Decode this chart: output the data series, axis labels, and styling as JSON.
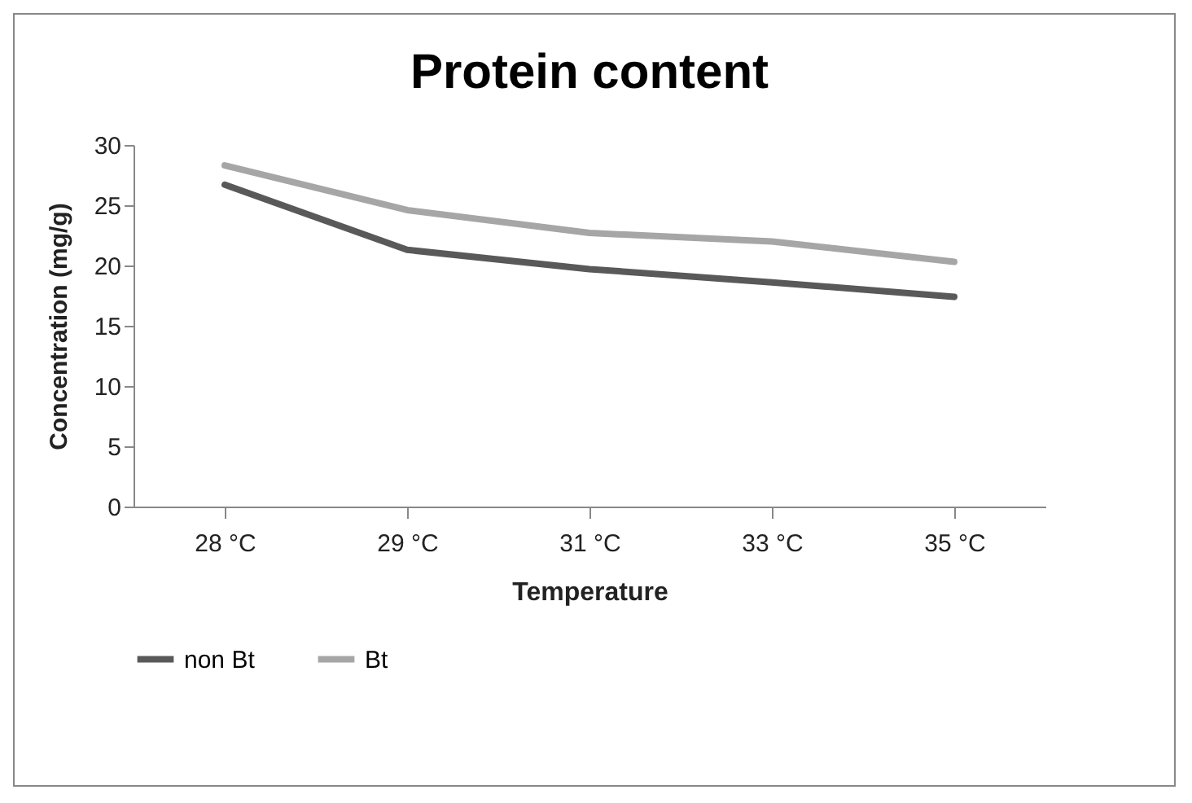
{
  "chart_data": {
    "type": "line",
    "title": "Protein content",
    "xlabel": "Temperature",
    "ylabel": "Concentration (mg/g)",
    "categories": [
      "28 °C",
      "29 °C",
      "31 °C",
      "33 °C",
      "35 °C"
    ],
    "series": [
      {
        "name": "non Bt",
        "color": "#595959",
        "values": [
          26.7,
          21.3,
          19.7,
          18.6,
          17.4
        ]
      },
      {
        "name": "Bt",
        "color": "#a6a6a6",
        "values": [
          28.3,
          24.6,
          22.7,
          22.0,
          20.3
        ]
      }
    ],
    "ylim": [
      0,
      30
    ],
    "yticks": [
      0,
      5,
      10,
      15,
      20,
      25,
      30
    ],
    "grid": false,
    "legend": "bottom",
    "marker": "none",
    "line_style": "solid"
  }
}
